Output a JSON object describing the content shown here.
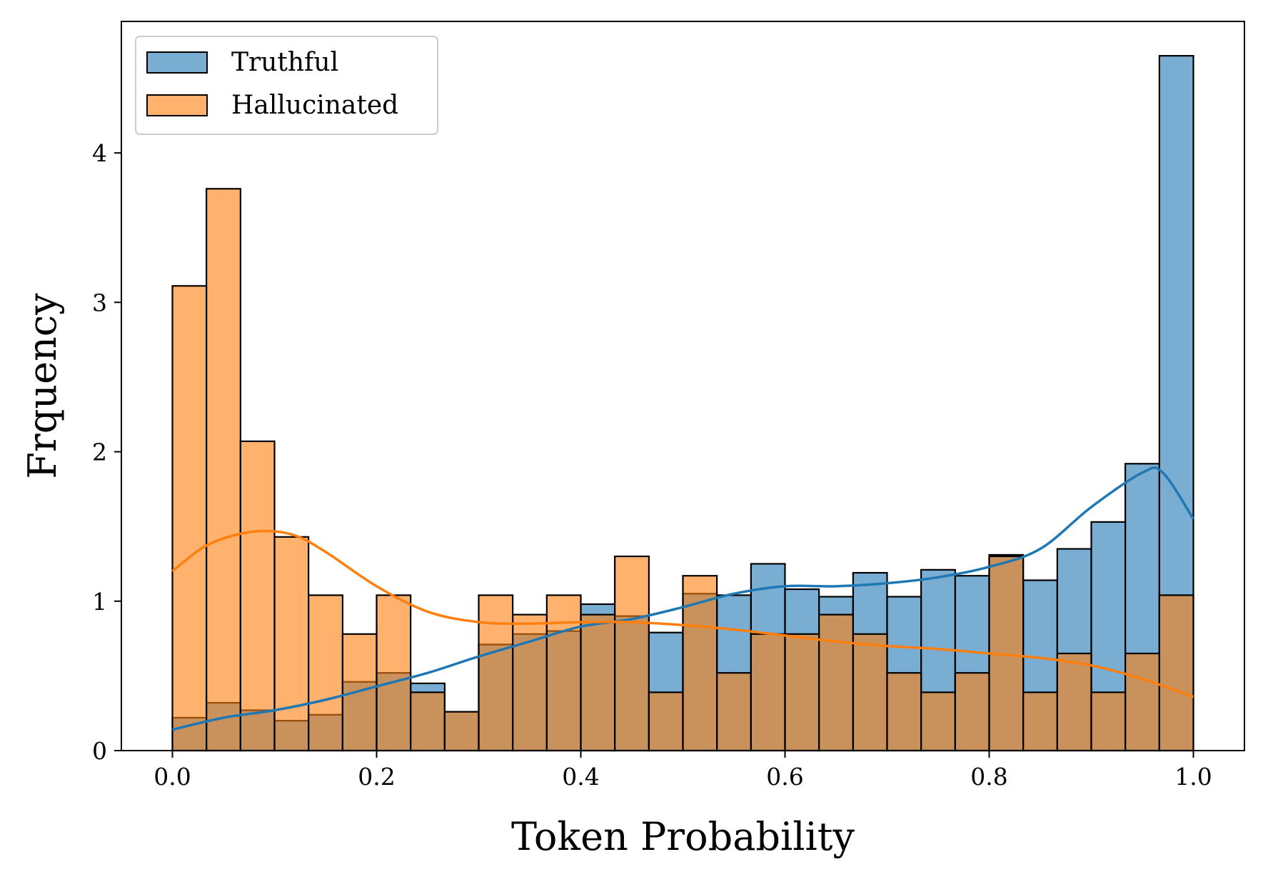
{
  "chart_data": {
    "type": "histogram",
    "xlabel": "Token Probability",
    "ylabel": "Frquency",
    "xlim": [
      -0.05,
      1.05
    ],
    "ylim": [
      0,
      4.88
    ],
    "xticks": [
      "0.0",
      "0.2",
      "0.4",
      "0.6",
      "0.8",
      "1.0"
    ],
    "yticks": [
      "0",
      "1",
      "2",
      "3",
      "4"
    ],
    "bin_edges": [
      0.0,
      0.0333,
      0.0667,
      0.1,
      0.1333,
      0.1667,
      0.2,
      0.2333,
      0.2667,
      0.3,
      0.3333,
      0.3667,
      0.4,
      0.4333,
      0.4667,
      0.5,
      0.5333,
      0.5667,
      0.6,
      0.6333,
      0.6667,
      0.7,
      0.7333,
      0.7667,
      0.8,
      0.8333,
      0.8667,
      0.9,
      0.9333,
      0.9667,
      1.0
    ],
    "legend_position": "upper left",
    "series": [
      {
        "name": "Truthful",
        "color": "#1f77b4",
        "fill": "#77aed4",
        "values": [
          0.22,
          0.32,
          0.27,
          0.2,
          0.24,
          0.46,
          0.52,
          0.45,
          0.26,
          0.71,
          0.78,
          0.8,
          0.98,
          0.9,
          0.79,
          1.05,
          1.04,
          1.25,
          1.08,
          1.03,
          1.19,
          1.03,
          1.21,
          1.17,
          1.31,
          1.14,
          1.35,
          1.53,
          1.92,
          4.65
        ],
        "kde_x": [
          0.0,
          0.05,
          0.1,
          0.15,
          0.2,
          0.25,
          0.3,
          0.35,
          0.4,
          0.45,
          0.5,
          0.55,
          0.6,
          0.65,
          0.7,
          0.75,
          0.8,
          0.85,
          0.9,
          0.95,
          0.97,
          1.0
        ],
        "kde_y": [
          0.14,
          0.22,
          0.27,
          0.34,
          0.43,
          0.52,
          0.63,
          0.73,
          0.83,
          0.88,
          0.96,
          1.05,
          1.1,
          1.1,
          1.12,
          1.16,
          1.23,
          1.35,
          1.63,
          1.86,
          1.86,
          1.55
        ]
      },
      {
        "name": "Hallucinated",
        "color": "#ff7f0e",
        "fill": "#ffb06e",
        "values": [
          3.11,
          3.76,
          2.07,
          1.43,
          1.04,
          0.78,
          1.04,
          0.39,
          0.26,
          1.04,
          0.91,
          1.04,
          0.91,
          1.3,
          0.39,
          1.17,
          0.52,
          0.78,
          0.78,
          0.91,
          0.78,
          0.52,
          0.39,
          0.52,
          1.3,
          0.39,
          0.65,
          0.39,
          0.65,
          1.04
        ],
        "kde_x": [
          0.0,
          0.03,
          0.06,
          0.09,
          0.12,
          0.15,
          0.2,
          0.25,
          0.3,
          0.35,
          0.4,
          0.45,
          0.5,
          0.55,
          0.6,
          0.65,
          0.7,
          0.75,
          0.8,
          0.85,
          0.9,
          0.95,
          1.0
        ],
        "kde_y": [
          1.2,
          1.36,
          1.44,
          1.47,
          1.44,
          1.33,
          1.1,
          0.93,
          0.86,
          0.85,
          0.86,
          0.86,
          0.84,
          0.81,
          0.77,
          0.73,
          0.7,
          0.68,
          0.65,
          0.62,
          0.57,
          0.48,
          0.36
        ]
      }
    ]
  }
}
